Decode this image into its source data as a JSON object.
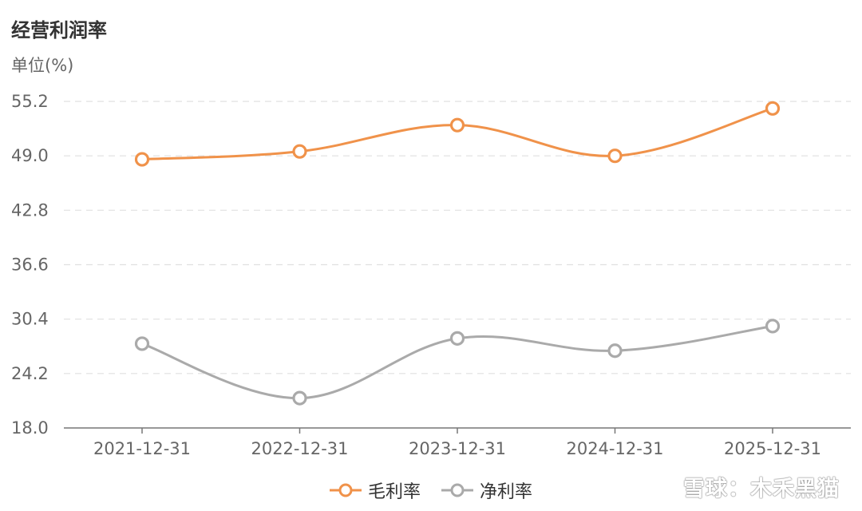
{
  "chart_data": {
    "type": "line",
    "title": "经营利润率",
    "ylabel": "单位(%)",
    "categories": [
      "2021-12-31",
      "2022-12-31",
      "2023-12-31",
      "2024-12-31",
      "2025-12-31"
    ],
    "yticks": [
      "18.0",
      "24.2",
      "30.4",
      "36.6",
      "42.8",
      "49.0",
      "55.2"
    ],
    "ylim": [
      18.0,
      55.2
    ],
    "grid": true,
    "legend_position": "bottom",
    "series": [
      {
        "name": "毛利率",
        "color": "#f0924a",
        "values": [
          48.6,
          49.5,
          52.5,
          49.0,
          54.4
        ]
      },
      {
        "name": "净利率",
        "color": "#aaaaaa",
        "values": [
          27.6,
          21.4,
          28.2,
          26.8,
          29.6
        ]
      }
    ]
  },
  "watermark": "雪球：木禾黑猫"
}
